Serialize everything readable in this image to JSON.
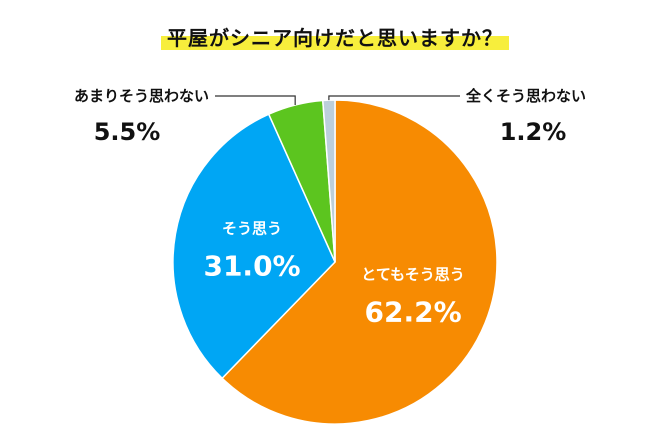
{
  "title": "平屋がシニア向けだと思いますか？",
  "chart_data": {
    "type": "pie",
    "title": "平屋がシニア向けだと思いますか？",
    "slices": [
      {
        "label": "とてもそう思う",
        "value": 62.2,
        "display": "62.2%",
        "color": "#f78b02"
      },
      {
        "label": "そう思う",
        "value": 31.0,
        "display": "31.0%",
        "color": "#00a6f4"
      },
      {
        "label": "あまりそう思わない",
        "value": 5.5,
        "display": "5.5%",
        "color": "#5cc51f"
      },
      {
        "label": "全くそう思わない",
        "value": 1.2,
        "display": "1.2%",
        "color": "#bccfdb"
      }
    ],
    "start": "top",
    "direction": "clockwise"
  }
}
